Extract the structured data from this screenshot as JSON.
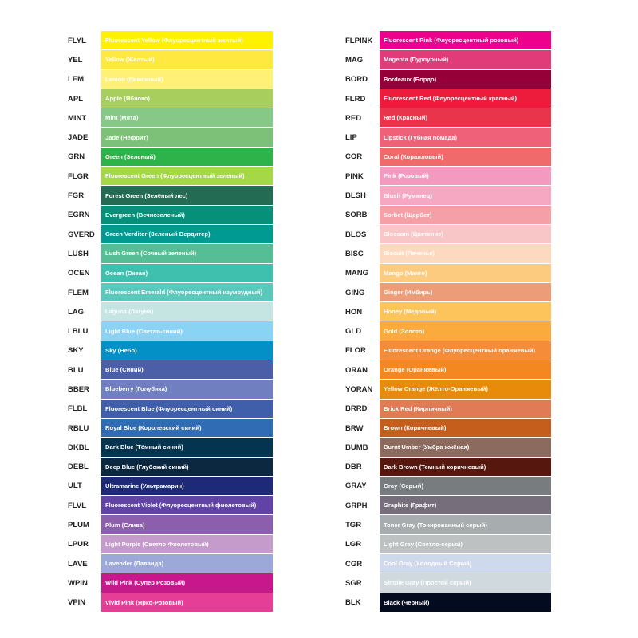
{
  "left_column": [
    {
      "code": "FLYL",
      "name": "Fluorescent Yellow (Флуоресцентный желтый)",
      "color": "#fff200"
    },
    {
      "code": "YEL",
      "name": "Yellow (Желтый)",
      "color": "#ffe83f"
    },
    {
      "code": "LEM",
      "name": "Lemon (Лимонный)",
      "color": "#fff176"
    },
    {
      "code": "APL",
      "name": "Apple (Яблоко)",
      "color": "#a8cf5e"
    },
    {
      "code": "MINT",
      "name": "Mint (Мята)",
      "color": "#86c987"
    },
    {
      "code": "JADE",
      "name": "Jade (Нефрит)",
      "color": "#7cc177"
    },
    {
      "code": "GRN",
      "name": "Green (Зеленый)",
      "color": "#2db34a"
    },
    {
      "code": "FLGR",
      "name": "Fluorescent Green (Флуоресцентный зеленый)",
      "color": "#a5d846"
    },
    {
      "code": "FGR",
      "name": "Forest Green (Зелёный лес)",
      "color": "#246b54"
    },
    {
      "code": "EGRN",
      "name": "Evergreen (Вечнозеленый)",
      "color": "#06907a"
    },
    {
      "code": "GVERD",
      "name": "Green Verditer (Зеленый Вердитер)",
      "color": "#009a93"
    },
    {
      "code": "LUSH",
      "name": "Lush Green (Сочный зеленый)",
      "color": "#55be96"
    },
    {
      "code": "OCEN",
      "name": "Ocean (Океан)",
      "color": "#3fbfae"
    },
    {
      "code": "FLEM",
      "name": "Fluorescent Emerald (Флуоресцентный изумрудный)",
      "color": "#5bc8bc"
    },
    {
      "code": "LAG",
      "name": "Laguna (Лагуна)",
      "color": "#c4e5e2"
    },
    {
      "code": "LBLU",
      "name": "Light Blue (Светло-синий)",
      "color": "#8bd3f4"
    },
    {
      "code": "SKY",
      "name": "Sky (Небо)",
      "color": "#0290c6"
    },
    {
      "code": "BLU",
      "name": "Blue (Синий)",
      "color": "#4b5fa9"
    },
    {
      "code": "BBER",
      "name": "Blueberry (Голубика)",
      "color": "#6f7fc0"
    },
    {
      "code": "FLBL",
      "name": "Fluorescent Blue (Флуоресцентный синий)",
      "color": "#3f5faa"
    },
    {
      "code": "RBLU",
      "name": "Royal Blue (Королевский синий)",
      "color": "#306cb4"
    },
    {
      "code": "DKBL",
      "name": "Dark Blue (Тёмный синий)",
      "color": "#053450"
    },
    {
      "code": "DEBL",
      "name": "Deep Blue (Глубокий синий)",
      "color": "#0c2740"
    },
    {
      "code": "ULT",
      "name": "Ultramarine (Ультрамарин)",
      "color": "#1e2a78"
    },
    {
      "code": "FLVL",
      "name": "Fluorescent Violet (Флуоресцентный фиолетовый)",
      "color": "#6043a5"
    },
    {
      "code": "PLUM",
      "name": "Plum (Слива)",
      "color": "#8b5fab"
    },
    {
      "code": "LPUR",
      "name": "Light Purple (Светло-Фиолетовый)",
      "color": "#c49bcb"
    },
    {
      "code": "LAVE",
      "name": "Lavender (Лаванда)",
      "color": "#9aa9d8"
    },
    {
      "code": "WPIN",
      "name": "Wild Pink (Супер Розовый)",
      "color": "#c8168c"
    },
    {
      "code": "VPIN",
      "name": "Vivid Pink (Ярко-Розовый)",
      "color": "#e63d96"
    }
  ],
  "right_column": [
    {
      "code": "FLPINK",
      "name": "Fluorescent Pink (Флуоресцентный розовый)",
      "color": "#ec008c"
    },
    {
      "code": "MAG",
      "name": "Magenta (Пурпурный)",
      "color": "#e13b7a"
    },
    {
      "code": "BORD",
      "name": "Bordeaux (Бордо)",
      "color": "#960038"
    },
    {
      "code": "FLRD",
      "name": "Fluorescent Red (Флуоресцентный красный)",
      "color": "#ed1c3c"
    },
    {
      "code": "RED",
      "name": "Red (Красный)",
      "color": "#e8354c"
    },
    {
      "code": "LIP",
      "name": "Lipstick (Губная помада)",
      "color": "#ef6079"
    },
    {
      "code": "COR",
      "name": "Coral (Коралловый)",
      "color": "#f0696b"
    },
    {
      "code": "PINK",
      "name": "Pink (Розовый)",
      "color": "#f49ac1"
    },
    {
      "code": "BLSH",
      "name": "Blush (Румянец)",
      "color": "#f6a8c2"
    },
    {
      "code": "SORB",
      "name": "Sorbet (Щербет)",
      "color": "#f5a0a6"
    },
    {
      "code": "BLOS",
      "name": "Blossom (Цветение)",
      "color": "#f9c6c7"
    },
    {
      "code": "BISC",
      "name": "Biscuit (Печенье)",
      "color": "#fdd9bf"
    },
    {
      "code": "MANG",
      "name": "Mango (Манго)",
      "color": "#fdcb80"
    },
    {
      "code": "GING",
      "name": "Ginger (Имбирь)",
      "color": "#ed9c78"
    },
    {
      "code": "HON",
      "name": "Honey (Медовый)",
      "color": "#fec45c"
    },
    {
      "code": "GLD",
      "name": "Gold (Золото)",
      "color": "#fbab3c"
    },
    {
      "code": "FLOR",
      "name": "Fluorescent Orange (Флуоресцентный оранжевый)",
      "color": "#f58c3a"
    },
    {
      "code": "ORAN",
      "name": "Orange (Оранжевый)",
      "color": "#f58720"
    },
    {
      "code": "YORAN",
      "name": "Yellow Orange (Жёлто-Оранжевый)",
      "color": "#e98b0a"
    },
    {
      "code": "BRRD",
      "name": "Brick Red (Кирпичный)",
      "color": "#e07b55"
    },
    {
      "code": "BRW",
      "name": "Brown (Коричневый)",
      "color": "#c55e1d"
    },
    {
      "code": "BUMB",
      "name": "Burnt Umber (Умбра жжёная)",
      "color": "#8c6a5e"
    },
    {
      "code": "DBR",
      "name": "Dark Brown (Темный коричневый)",
      "color": "#56170f"
    },
    {
      "code": "GRAY",
      "name": "Gray (Серый)",
      "color": "#787c7f"
    },
    {
      "code": "GRPH",
      "name": "Graphite (Графит)",
      "color": "#776e7c"
    },
    {
      "code": "TGR",
      "name": "Toner Gray (Тонированный серый)",
      "color": "#a7acae"
    },
    {
      "code": "LGR",
      "name": "Light Gray (Светло-серый)",
      "color": "#bdc1c1"
    },
    {
      "code": "CGR",
      "name": "Cool Gray (Холодный Серый)",
      "color": "#cfd9ee"
    },
    {
      "code": "SGR",
      "name": "Simple Gray (Простой серый)",
      "color": "#d0dade"
    },
    {
      "code": "BLK",
      "name": "Black (Черный)",
      "color": "#030b1e"
    }
  ]
}
